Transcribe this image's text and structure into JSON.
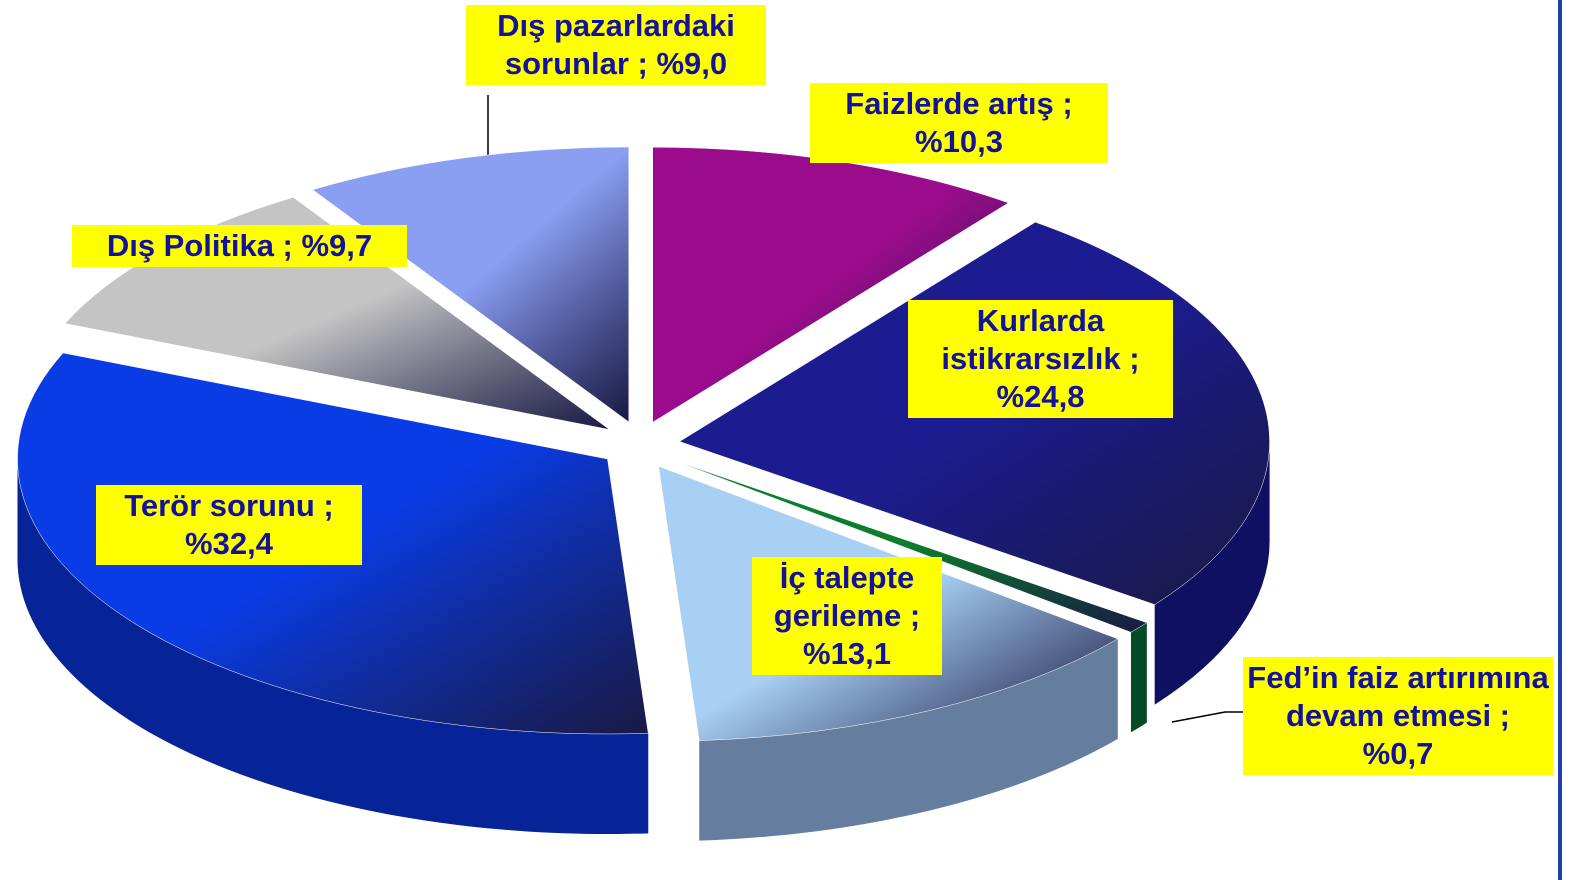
{
  "chart_data": {
    "type": "pie",
    "values": [
      10.3,
      24.8,
      0.7,
      13.1,
      32.4,
      9.7,
      9.0
    ],
    "value_labels": [
      "Faizlerde artış ; %10,3",
      "Kurlarda istikrarsızlık ; %24,8",
      "Fed’in faiz artırımına devam etmesi ; %0,7",
      "İç talepte gerileme ; %13,1",
      "Terör sorunu ; %32,4",
      "Dış Politika ; %9,7",
      "Dış pazarlardaki sorunlar ; %9,0"
    ],
    "colors": [
      "#9a0c8c",
      "#1c1c90",
      "#0b7d2c",
      "#a8d0f4",
      "#0a3ce6",
      "#c4c4c4",
      "#8a9ef2"
    ]
  }
}
